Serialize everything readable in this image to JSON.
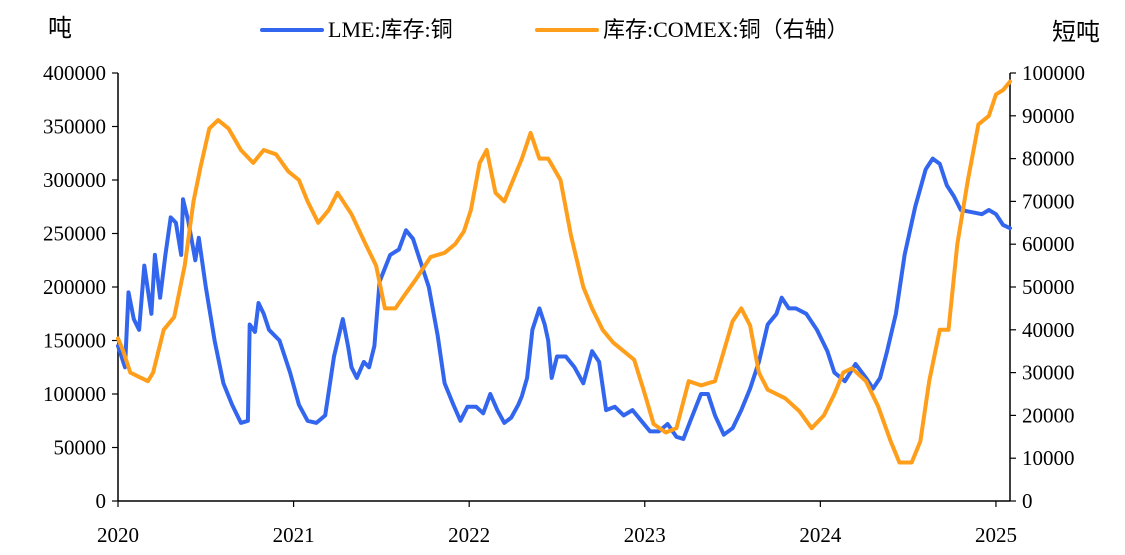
{
  "chart_data": {
    "type": "line",
    "left_axis_label": "吨",
    "right_axis_label": "短吨",
    "ylim": [
      0,
      400000
    ],
    "y2lim": [
      0,
      100000
    ],
    "y_ticks": [
      "0",
      "50000",
      "100000",
      "150000",
      "200000",
      "250000",
      "300000",
      "350000",
      "400000"
    ],
    "y2_ticks": [
      "0",
      "10000",
      "20000",
      "30000",
      "40000",
      "50000",
      "60000",
      "70000",
      "80000",
      "90000",
      "100000"
    ],
    "x_ticks": [
      "2020",
      "2021",
      "2022",
      "2023",
      "2024",
      "2025"
    ],
    "x_range": [
      2020.0,
      2025.08
    ],
    "legend_position": "top",
    "colors": {
      "lme": "#3366ee",
      "comex": "#ff9e1b"
    },
    "series": [
      {
        "name": "LME:库存:铜",
        "axis": "left",
        "points": [
          [
            2020.0,
            145000
          ],
          [
            2020.04,
            125000
          ],
          [
            2020.06,
            195000
          ],
          [
            2020.09,
            170000
          ],
          [
            2020.12,
            160000
          ],
          [
            2020.15,
            220000
          ],
          [
            2020.19,
            175000
          ],
          [
            2020.21,
            230000
          ],
          [
            2020.24,
            190000
          ],
          [
            2020.27,
            230000
          ],
          [
            2020.3,
            265000
          ],
          [
            2020.33,
            260000
          ],
          [
            2020.36,
            230000
          ],
          [
            2020.37,
            282000
          ],
          [
            2020.4,
            262000
          ],
          [
            2020.44,
            225000
          ],
          [
            2020.46,
            246000
          ],
          [
            2020.5,
            200000
          ],
          [
            2020.55,
            150000
          ],
          [
            2020.6,
            110000
          ],
          [
            2020.65,
            90000
          ],
          [
            2020.7,
            73000
          ],
          [
            2020.74,
            75000
          ],
          [
            2020.75,
            165000
          ],
          [
            2020.78,
            158000
          ],
          [
            2020.8,
            185000
          ],
          [
            2020.83,
            175000
          ],
          [
            2020.86,
            160000
          ],
          [
            2020.92,
            150000
          ],
          [
            2020.98,
            120000
          ],
          [
            2021.03,
            90000
          ],
          [
            2021.08,
            75000
          ],
          [
            2021.13,
            73000
          ],
          [
            2021.18,
            80000
          ],
          [
            2021.23,
            135000
          ],
          [
            2021.28,
            170000
          ],
          [
            2021.31,
            145000
          ],
          [
            2021.33,
            125000
          ],
          [
            2021.36,
            115000
          ],
          [
            2021.4,
            130000
          ],
          [
            2021.43,
            125000
          ],
          [
            2021.46,
            145000
          ],
          [
            2021.49,
            205000
          ],
          [
            2021.55,
            230000
          ],
          [
            2021.6,
            235000
          ],
          [
            2021.64,
            253000
          ],
          [
            2021.68,
            245000
          ],
          [
            2021.72,
            225000
          ],
          [
            2021.77,
            200000
          ],
          [
            2021.82,
            155000
          ],
          [
            2021.86,
            110000
          ],
          [
            2021.91,
            90000
          ],
          [
            2021.95,
            75000
          ],
          [
            2021.99,
            88000
          ],
          [
            2022.04,
            88000
          ],
          [
            2022.08,
            82000
          ],
          [
            2022.12,
            100000
          ],
          [
            2022.16,
            85000
          ],
          [
            2022.2,
            73000
          ],
          [
            2022.24,
            78000
          ],
          [
            2022.28,
            90000
          ],
          [
            2022.3,
            98000
          ],
          [
            2022.33,
            115000
          ],
          [
            2022.36,
            160000
          ],
          [
            2022.4,
            180000
          ],
          [
            2022.43,
            165000
          ],
          [
            2022.45,
            150000
          ],
          [
            2022.47,
            115000
          ],
          [
            2022.5,
            135000
          ],
          [
            2022.55,
            135000
          ],
          [
            2022.6,
            125000
          ],
          [
            2022.65,
            110000
          ],
          [
            2022.7,
            140000
          ],
          [
            2022.74,
            130000
          ],
          [
            2022.78,
            85000
          ],
          [
            2022.83,
            88000
          ],
          [
            2022.88,
            80000
          ],
          [
            2022.93,
            85000
          ],
          [
            2022.98,
            75000
          ],
          [
            2023.03,
            65000
          ],
          [
            2023.08,
            65000
          ],
          [
            2023.13,
            72000
          ],
          [
            2023.18,
            60000
          ],
          [
            2023.22,
            58000
          ],
          [
            2023.26,
            75000
          ],
          [
            2023.32,
            100000
          ],
          [
            2023.36,
            100000
          ],
          [
            2023.4,
            80000
          ],
          [
            2023.45,
            62000
          ],
          [
            2023.5,
            68000
          ],
          [
            2023.55,
            85000
          ],
          [
            2023.6,
            105000
          ],
          [
            2023.65,
            130000
          ],
          [
            2023.7,
            165000
          ],
          [
            2023.75,
            175000
          ],
          [
            2023.78,
            190000
          ],
          [
            2023.82,
            180000
          ],
          [
            2023.86,
            180000
          ],
          [
            2023.92,
            175000
          ],
          [
            2023.98,
            160000
          ],
          [
            2024.04,
            140000
          ],
          [
            2024.08,
            120000
          ],
          [
            2024.14,
            112000
          ],
          [
            2024.2,
            128000
          ],
          [
            2024.26,
            115000
          ],
          [
            2024.3,
            105000
          ],
          [
            2024.34,
            115000
          ],
          [
            2024.38,
            140000
          ],
          [
            2024.43,
            175000
          ],
          [
            2024.48,
            230000
          ],
          [
            2024.54,
            275000
          ],
          [
            2024.6,
            310000
          ],
          [
            2024.64,
            320000
          ],
          [
            2024.68,
            315000
          ],
          [
            2024.72,
            295000
          ],
          [
            2024.76,
            285000
          ],
          [
            2024.8,
            272000
          ],
          [
            2024.86,
            270000
          ],
          [
            2024.92,
            268000
          ],
          [
            2024.96,
            272000
          ],
          [
            2025.0,
            268000
          ],
          [
            2025.04,
            258000
          ],
          [
            2025.08,
            255000
          ]
        ]
      },
      {
        "name": "库存:COMEX:铜（右轴）",
        "axis": "right",
        "points": [
          [
            2020.0,
            38000
          ],
          [
            2020.03,
            35000
          ],
          [
            2020.07,
            30000
          ],
          [
            2020.12,
            29000
          ],
          [
            2020.17,
            28000
          ],
          [
            2020.2,
            30000
          ],
          [
            2020.26,
            40000
          ],
          [
            2020.32,
            43000
          ],
          [
            2020.38,
            55000
          ],
          [
            2020.43,
            70000
          ],
          [
            2020.47,
            78000
          ],
          [
            2020.52,
            87000
          ],
          [
            2020.57,
            89000
          ],
          [
            2020.63,
            87000
          ],
          [
            2020.7,
            82000
          ],
          [
            2020.77,
            79000
          ],
          [
            2020.83,
            82000
          ],
          [
            2020.9,
            81000
          ],
          [
            2020.97,
            77000
          ],
          [
            2021.03,
            75000
          ],
          [
            2021.08,
            70000
          ],
          [
            2021.14,
            65000
          ],
          [
            2021.2,
            68000
          ],
          [
            2021.25,
            72000
          ],
          [
            2021.33,
            67000
          ],
          [
            2021.41,
            60000
          ],
          [
            2021.47,
            55000
          ],
          [
            2021.52,
            45000
          ],
          [
            2021.58,
            45000
          ],
          [
            2021.63,
            48000
          ],
          [
            2021.7,
            52000
          ],
          [
            2021.78,
            57000
          ],
          [
            2021.86,
            58000
          ],
          [
            2021.92,
            60000
          ],
          [
            2021.97,
            63000
          ],
          [
            2022.01,
            68000
          ],
          [
            2022.06,
            79000
          ],
          [
            2022.1,
            82000
          ],
          [
            2022.15,
            72000
          ],
          [
            2022.2,
            70000
          ],
          [
            2022.25,
            75000
          ],
          [
            2022.3,
            80000
          ],
          [
            2022.35,
            86000
          ],
          [
            2022.4,
            80000
          ],
          [
            2022.45,
            80000
          ],
          [
            2022.52,
            75000
          ],
          [
            2022.58,
            62000
          ],
          [
            2022.65,
            50000
          ],
          [
            2022.7,
            45000
          ],
          [
            2022.76,
            40000
          ],
          [
            2022.82,
            37000
          ],
          [
            2022.88,
            35000
          ],
          [
            2022.94,
            33000
          ],
          [
            2023.0,
            25000
          ],
          [
            2023.05,
            18000
          ],
          [
            2023.12,
            16000
          ],
          [
            2023.18,
            17000
          ],
          [
            2023.25,
            28000
          ],
          [
            2023.32,
            27000
          ],
          [
            2023.4,
            28000
          ],
          [
            2023.45,
            35000
          ],
          [
            2023.5,
            42000
          ],
          [
            2023.55,
            45000
          ],
          [
            2023.6,
            41000
          ],
          [
            2023.65,
            30000
          ],
          [
            2023.7,
            26000
          ],
          [
            2023.8,
            24000
          ],
          [
            2023.88,
            21000
          ],
          [
            2023.95,
            17000
          ],
          [
            2024.02,
            20000
          ],
          [
            2024.08,
            25000
          ],
          [
            2024.13,
            30000
          ],
          [
            2024.18,
            31000
          ],
          [
            2024.26,
            28000
          ],
          [
            2024.33,
            22000
          ],
          [
            2024.4,
            14000
          ],
          [
            2024.45,
            9000
          ],
          [
            2024.52,
            9000
          ],
          [
            2024.57,
            14000
          ],
          [
            2024.62,
            28000
          ],
          [
            2024.68,
            40000
          ],
          [
            2024.73,
            40000
          ],
          [
            2024.78,
            60000
          ],
          [
            2024.84,
            75000
          ],
          [
            2024.9,
            88000
          ],
          [
            2024.96,
            90000
          ],
          [
            2025.0,
            95000
          ],
          [
            2025.04,
            96000
          ],
          [
            2025.08,
            98000
          ]
        ]
      }
    ]
  }
}
